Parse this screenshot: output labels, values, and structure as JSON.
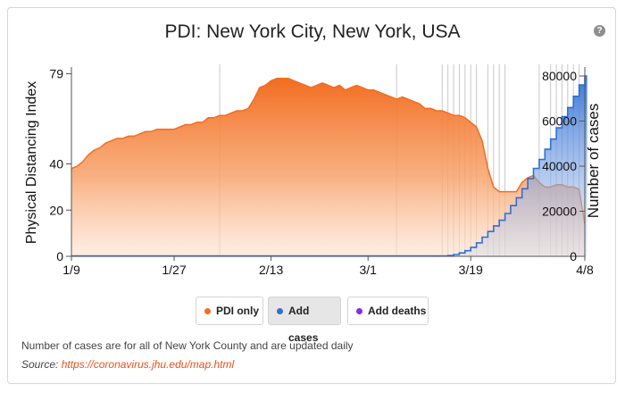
{
  "title": "PDI: New York City, New York, USA",
  "help_label": "?",
  "buttons": [
    {
      "label": "PDI only",
      "color": "#f26d21",
      "selected": false
    },
    {
      "label": "Add cases",
      "color": "#2e6fd6",
      "selected": true
    },
    {
      "label": "Add deaths",
      "color": "#8a2be2",
      "selected": false
    }
  ],
  "footnote": "Number of cases are for all of New York County and are updated daily",
  "source_label": "Source: ",
  "source_link": "https://coronavirus.jhu.edu/map.html",
  "colors": {
    "pdi": "#f26d21",
    "cases": "#2e6fd6",
    "deaths": "#8a2be2",
    "grid": "#c8c8c8"
  },
  "chart_data": {
    "type": "area",
    "ylabel": "Physical Distancing Index",
    "y2label": "Number of cases",
    "x_tick_labels": [
      "1/9",
      "1/27",
      "2/13",
      "3/1",
      "3/19",
      "4/8"
    ],
    "y_tick_labels": [
      "0",
      "20",
      "40",
      "79"
    ],
    "y_tick_values": [
      0,
      20,
      40,
      79
    ],
    "y2_tick_labels": [
      "0",
      "20000",
      "40000",
      "60000",
      "80000"
    ],
    "y2_tick_values": [
      0,
      20000,
      40000,
      60000,
      80000
    ],
    "ylim": [
      0,
      80
    ],
    "y2lim": [
      0,
      82000
    ],
    "x_start": "1/9",
    "x_end": "4/8",
    "event_lines": [
      "2/4",
      "3/6",
      "3/14",
      "3/15",
      "3/16",
      "3/17",
      "3/18",
      "3/19",
      "3/20",
      "3/22",
      "3/23",
      "3/24",
      "3/25",
      "3/31",
      "4/2",
      "4/3",
      "4/4",
      "4/5",
      "4/6",
      "4/7"
    ],
    "series": [
      {
        "name": "PDI only",
        "axis": "left",
        "x": [
          "1/9",
          "1/10",
          "1/11",
          "1/12",
          "1/13",
          "1/14",
          "1/15",
          "1/16",
          "1/17",
          "1/18",
          "1/19",
          "1/20",
          "1/21",
          "1/22",
          "1/23",
          "1/24",
          "1/25",
          "1/26",
          "1/27",
          "1/28",
          "1/29",
          "1/30",
          "1/31",
          "2/1",
          "2/2",
          "2/3",
          "2/4",
          "2/5",
          "2/6",
          "2/7",
          "2/8",
          "2/9",
          "2/10",
          "2/11",
          "2/12",
          "2/13",
          "2/14",
          "2/15",
          "2/16",
          "2/17",
          "2/18",
          "2/19",
          "2/20",
          "2/21",
          "2/22",
          "2/23",
          "2/24",
          "2/25",
          "2/26",
          "2/27",
          "2/28",
          "2/29",
          "3/1",
          "3/2",
          "3/3",
          "3/4",
          "3/5",
          "3/6",
          "3/7",
          "3/8",
          "3/9",
          "3/10",
          "3/11",
          "3/12",
          "3/13",
          "3/14",
          "3/15",
          "3/16",
          "3/17",
          "3/18",
          "3/19",
          "3/20",
          "3/21",
          "3/22",
          "3/23",
          "3/24",
          "3/25",
          "3/26",
          "3/27",
          "3/28",
          "3/29",
          "3/30",
          "3/31",
          "4/1",
          "4/2",
          "4/3",
          "4/4",
          "4/5",
          "4/6",
          "4/7",
          "4/8"
        ],
        "values": [
          38,
          39,
          41,
          44,
          46,
          47,
          49,
          50,
          51,
          51,
          52,
          52,
          53,
          54,
          54,
          55,
          55,
          55,
          55,
          56,
          57,
          57,
          58,
          58,
          60,
          60,
          61,
          61,
          62,
          63,
          63,
          64,
          68,
          73,
          74,
          76,
          77,
          77,
          77,
          76,
          75,
          74,
          73,
          74,
          75,
          74,
          73,
          74,
          72,
          73,
          74,
          73,
          72,
          72,
          71,
          70,
          69,
          68,
          69,
          68,
          67,
          66,
          64,
          64,
          63,
          63,
          62,
          61,
          61,
          60,
          58,
          56,
          50,
          38,
          30,
          28,
          28,
          28,
          28,
          32,
          34,
          35,
          32,
          30,
          30,
          31,
          31,
          30,
          30,
          29,
          14
        ]
      },
      {
        "name": "Add cases",
        "axis": "right",
        "x": [
          "3/14",
          "3/15",
          "3/16",
          "3/17",
          "3/18",
          "3/19",
          "3/20",
          "3/21",
          "3/22",
          "3/23",
          "3/24",
          "3/25",
          "3/26",
          "3/27",
          "3/28",
          "3/29",
          "3/30",
          "3/31",
          "4/1",
          "4/2",
          "4/3",
          "4/4",
          "4/5",
          "4/6",
          "4/7",
          "4/8"
        ],
        "values": [
          200,
          400,
          800,
          1500,
          2500,
          4000,
          6000,
          8500,
          11000,
          13500,
          16000,
          19000,
          22500,
          26000,
          30000,
          34500,
          39000,
          43000,
          47500,
          52000,
          57000,
          62000,
          66000,
          71000,
          76000,
          80000
        ]
      }
    ]
  }
}
